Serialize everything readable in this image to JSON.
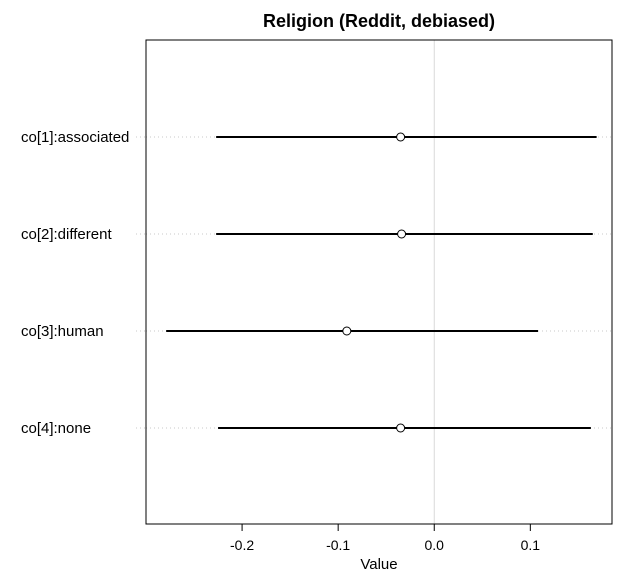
{
  "chart_data": {
    "type": "dotplot",
    "title": "Religion (Reddit, debiased)",
    "xlabel": "Value",
    "ylabel": "",
    "xlim": [
      -0.3,
      0.185
    ],
    "xticks": [
      "-0.2",
      "-0.1",
      "0.0",
      "0.1"
    ],
    "reference_line": 0.0,
    "categories": [
      "co[1]:associated",
      "co[2]:different",
      "co[3]:human",
      "co[4]:none"
    ],
    "series": [
      {
        "points": [
          -0.035,
          -0.034,
          -0.091,
          -0.035
        ],
        "lower": [
          -0.227,
          -0.227,
          -0.279,
          -0.225
        ],
        "upper": [
          0.169,
          0.165,
          0.108,
          0.163
        ]
      }
    ],
    "grid": "dotted horizontal at each category",
    "colors": {
      "interval": "#000000",
      "gridline": "#c8c8c8",
      "reference": "#d9d9d9",
      "frame": "#000000"
    }
  }
}
